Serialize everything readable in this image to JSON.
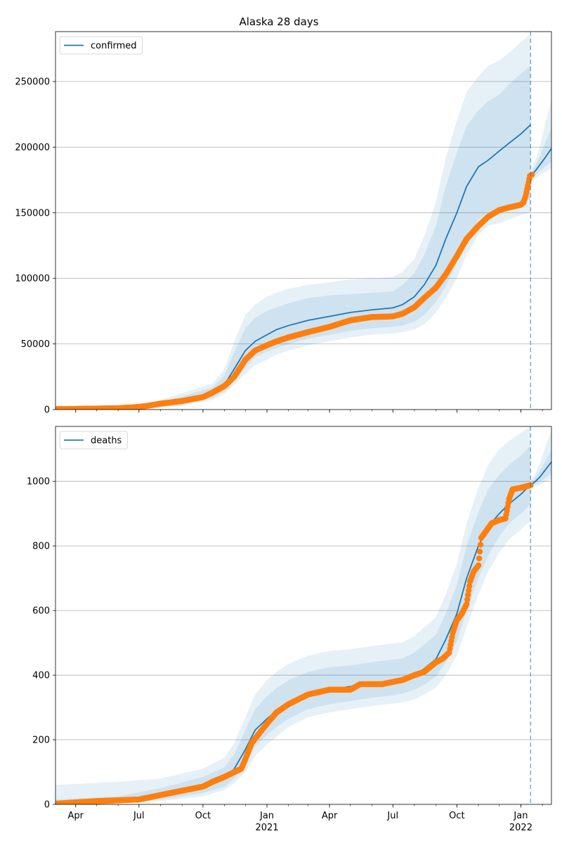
{
  "title": "Alaska 28 days",
  "x_axis": {
    "ticks": [
      {
        "date": "2020-04-01",
        "label": "Apr",
        "year": ""
      },
      {
        "date": "2020-07-01",
        "label": "Jul",
        "year": ""
      },
      {
        "date": "2020-10-01",
        "label": "Oct",
        "year": ""
      },
      {
        "date": "2021-01-01",
        "label": "Jan",
        "year": "2021"
      },
      {
        "date": "2021-04-01",
        "label": "Apr",
        "year": ""
      },
      {
        "date": "2021-07-01",
        "label": "Jul",
        "year": ""
      },
      {
        "date": "2021-10-01",
        "label": "Oct",
        "year": ""
      },
      {
        "date": "2022-01-01",
        "label": "Jan",
        "year": "2022"
      }
    ],
    "xlim": [
      "2020-03-03",
      "2022-02-14"
    ]
  },
  "forecast_date": "2022-01-15",
  "colors": {
    "model": "#1f77b4",
    "observed": "#ff7f0e",
    "band": "#1f77b4",
    "grid": "#b0b0b0"
  },
  "chart_data": [
    {
      "type": "line",
      "legend": "confirmed",
      "legend_position": "top-left",
      "grid": "y",
      "ylim": [
        0,
        288000
      ],
      "yticks": [
        0,
        50000,
        100000,
        150000,
        200000,
        250000
      ],
      "model": {
        "x": [
          "2020-03-03",
          "2020-06-01",
          "2020-07-15",
          "2020-09-01",
          "2020-10-15",
          "2020-11-01",
          "2020-11-15",
          "2020-12-01",
          "2020-12-15",
          "2021-01-01",
          "2021-01-15",
          "2021-02-01",
          "2021-03-01",
          "2021-04-01",
          "2021-05-01",
          "2021-06-01",
          "2021-07-01",
          "2021-07-15",
          "2021-08-01",
          "2021-08-15",
          "2021-09-01",
          "2021-09-15",
          "2021-10-01",
          "2021-10-15",
          "2021-11-01",
          "2021-11-15",
          "2021-12-01",
          "2021-12-15",
          "2022-01-01",
          "2022-01-15"
        ],
        "median": [
          300,
          800,
          2000,
          6500,
          12000,
          19000,
          31000,
          45000,
          52000,
          57000,
          61000,
          64000,
          68000,
          71000,
          74000,
          76000,
          77500,
          80000,
          86000,
          95000,
          110000,
          130000,
          150000,
          170000,
          185000,
          190000,
          197000,
          203000,
          210000,
          217000
        ],
        "bands": [
          {
            "lower": [
              0,
              400,
              1000,
              4000,
              9000,
              14000,
              22000,
              32000,
              40000,
              44000,
              47000,
              50000,
              54000,
              57000,
              60000,
              62000,
              63000,
              64000,
              67000,
              72000,
              82000,
              94000,
              112000,
              130000,
              145000,
              150000,
              152000,
              155000,
              158000,
              160000
            ],
            "upper": [
              600,
              1300,
              3500,
              10000,
              17000,
              26000,
              44000,
              62000,
              70000,
              75000,
              78000,
              81000,
              85000,
              87000,
              88000,
              89000,
              90000,
              95000,
              104000,
              118000,
              140000,
              170000,
              196000,
              216000,
              228000,
              235000,
              240000,
              248000,
              256000,
              262000
            ]
          },
          {
            "lower": [
              0,
              300,
              700,
              3000,
              7500,
              12000,
              19000,
              27000,
              34000,
              38000,
              42000,
              45000,
              49000,
              52000,
              55000,
              57000,
              58000,
              59000,
              61000,
              65000,
              74000,
              85000,
              100000,
              118000,
              133000,
              140000,
              142000,
              145000,
              148000,
              150000
            ],
            "upper": [
              900,
              1700,
              4500,
              12500,
              20000,
              31000,
              52000,
              72000,
              80000,
              86000,
              89000,
              92000,
              95000,
              97000,
              99000,
              100000,
              101000,
              105000,
              115000,
              132000,
              158000,
              192000,
              220000,
              242000,
              254000,
              262000,
              266000,
              272000,
              280000,
              286000
            ]
          }
        ]
      },
      "extension": {
        "x": [
          "2022-01-15",
          "2022-01-22",
          "2022-01-29",
          "2022-02-05",
          "2022-02-14"
        ],
        "median": [
          178000,
          182000,
          187000,
          192000,
          199000
        ],
        "bands": [
          {
            "lower": [
              176000,
              179000,
              182000,
              185000,
              189000
            ],
            "upper": [
              180000,
              186000,
              194000,
              203000,
              215000
            ]
          },
          {
            "lower": [
              174000,
              176000,
              179000,
              181000,
              184000
            ],
            "upper": [
              182000,
              190000,
              202000,
              218000,
              236000
            ]
          }
        ]
      },
      "observed": {
        "x": [
          "2020-03-03",
          "2020-06-01",
          "2020-07-01",
          "2020-07-15",
          "2020-08-01",
          "2020-09-01",
          "2020-10-01",
          "2020-10-15",
          "2020-11-01",
          "2020-11-15",
          "2020-12-01",
          "2020-12-15",
          "2021-01-01",
          "2021-01-15",
          "2021-02-01",
          "2021-03-01",
          "2021-04-01",
          "2021-05-01",
          "2021-06-01",
          "2021-07-01",
          "2021-07-15",
          "2021-08-01",
          "2021-08-15",
          "2021-09-01",
          "2021-09-15",
          "2021-10-01",
          "2021-10-15",
          "2021-11-01",
          "2021-11-15",
          "2021-12-01",
          "2021-12-15",
          "2022-01-01",
          "2022-01-05",
          "2022-01-08",
          "2022-01-10",
          "2022-01-12",
          "2022-01-14",
          "2022-01-17"
        ],
        "y": [
          300,
          1000,
          2000,
          3000,
          4500,
          6500,
          9500,
          13000,
          18000,
          25000,
          38000,
          45000,
          49000,
          52000,
          55000,
          59000,
          63000,
          68000,
          70500,
          71000,
          73000,
          78000,
          85000,
          93000,
          103000,
          117000,
          130000,
          140000,
          147000,
          152000,
          154000,
          156000,
          158000,
          163000,
          168000,
          173000,
          178000,
          179000
        ]
      }
    },
    {
      "type": "line",
      "legend": "deaths",
      "legend_position": "top-left",
      "grid": "y",
      "ylim": [
        0,
        1170
      ],
      "yticks": [
        0,
        200,
        400,
        600,
        800,
        1000
      ],
      "model": {
        "x": [
          "2020-03-03",
          "2020-06-01",
          "2020-08-01",
          "2020-10-01",
          "2020-11-01",
          "2020-11-15",
          "2020-12-01",
          "2020-12-15",
          "2021-01-01",
          "2021-01-15",
          "2021-02-01",
          "2021-03-01",
          "2021-04-01",
          "2021-05-01",
          "2021-06-01",
          "2021-07-01",
          "2021-07-15",
          "2021-08-01",
          "2021-08-15",
          "2021-09-01",
          "2021-09-15",
          "2021-10-01",
          "2021-10-15",
          "2021-11-01",
          "2021-11-15",
          "2021-12-01",
          "2021-12-15",
          "2022-01-01",
          "2022-01-15"
        ],
        "median": [
          2,
          10,
          30,
          55,
          80,
          110,
          170,
          230,
          265,
          290,
          315,
          340,
          355,
          365,
          372,
          380,
          385,
          400,
          420,
          450,
          510,
          590,
          700,
          800,
          860,
          900,
          930,
          960,
          990
        ],
        "bands": [
          {
            "lower": [
              0,
              5,
              15,
              35,
              55,
              80,
              125,
              180,
              215,
              240,
              265,
              295,
              310,
              320,
              330,
              338,
              343,
              355,
              370,
              395,
              440,
              505,
              600,
              700,
              770,
              830,
              870,
              900,
              930
            ],
            "upper": [
              15,
              25,
              50,
              85,
              115,
              155,
              230,
              295,
              335,
              360,
              385,
              410,
              425,
              430,
              440,
              448,
              452,
              470,
              495,
              525,
              590,
              680,
              800,
              905,
              975,
              1020,
              1050,
              1080,
              1110
            ]
          },
          {
            "lower": [
              0,
              3,
              10,
              25,
              45,
              65,
              100,
              150,
              185,
              210,
              240,
              270,
              285,
              295,
              305,
              312,
              316,
              325,
              340,
              362,
              400,
              460,
              550,
              650,
              720,
              780,
              820,
              850,
              880
            ],
            "upper": [
              60,
              70,
              80,
              110,
              145,
              190,
              270,
              340,
              385,
              410,
              435,
              460,
              475,
              480,
              490,
              498,
              502,
              520,
              548,
              580,
              650,
              745,
              870,
              980,
              1050,
              1100,
              1125,
              1150,
              1170
            ]
          }
        ]
      },
      "extension": {
        "x": [
          "2022-01-15",
          "2022-01-22",
          "2022-01-29",
          "2022-02-05",
          "2022-02-14"
        ],
        "median": [
          988,
          1000,
          1015,
          1035,
          1060
        ],
        "bands": [
          {
            "lower": [
              985,
              992,
              1000,
              1010,
              1025
            ],
            "upper": [
              995,
              1012,
              1035,
              1062,
              1095
            ]
          },
          {
            "lower": [
              980,
              985,
              990,
              998,
              1008
            ],
            "upper": [
              1000,
              1025,
              1060,
              1105,
              1160
            ]
          }
        ]
      },
      "observed": {
        "x": [
          "2020-03-03",
          "2020-05-01",
          "2020-07-01",
          "2020-08-15",
          "2020-10-01",
          "2020-10-15",
          "2020-11-01",
          "2020-11-15",
          "2020-11-25",
          "2020-12-01",
          "2020-12-10",
          "2021-01-01",
          "2021-01-15",
          "2021-02-01",
          "2021-03-01",
          "2021-04-01",
          "2021-05-01",
          "2021-05-15",
          "2021-06-15",
          "2021-07-15",
          "2021-08-01",
          "2021-08-15",
          "2021-09-01",
          "2021-09-10",
          "2021-09-20",
          "2021-09-25",
          "2021-10-01",
          "2021-10-08",
          "2021-10-15",
          "2021-10-20",
          "2021-10-25",
          "2021-11-01",
          "2021-11-05",
          "2021-11-10",
          "2021-11-20",
          "2021-12-01",
          "2021-12-10",
          "2021-12-15",
          "2021-12-20",
          "2022-01-01",
          "2022-01-10",
          "2022-01-15"
        ],
        "y": [
          2,
          10,
          15,
          35,
          55,
          70,
          85,
          100,
          110,
          140,
          190,
          250,
          285,
          310,
          340,
          355,
          355,
          372,
          372,
          385,
          400,
          410,
          440,
          450,
          470,
          530,
          570,
          590,
          620,
          690,
          720,
          740,
          825,
          840,
          870,
          880,
          885,
          945,
          975,
          980,
          985,
          988
        ]
      }
    }
  ]
}
